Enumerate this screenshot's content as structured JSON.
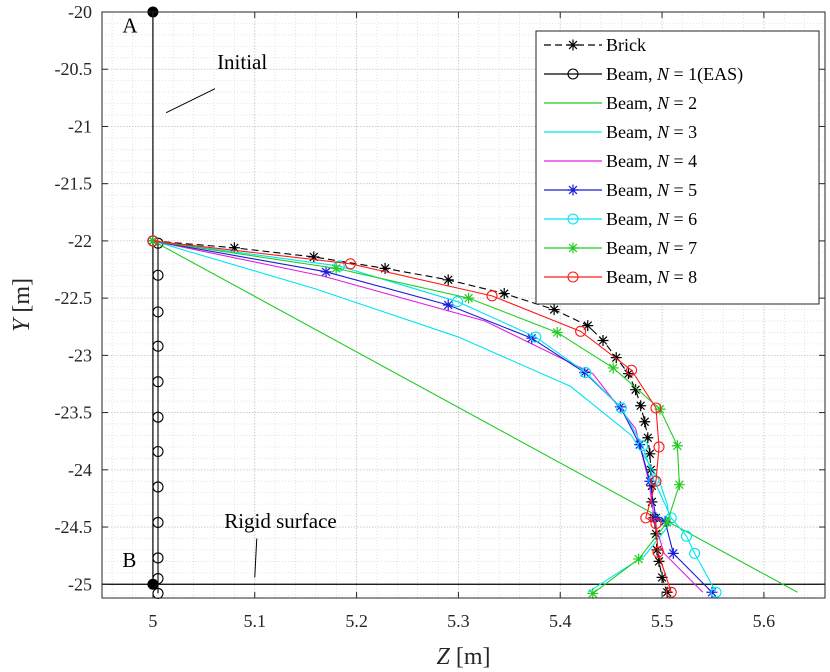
{
  "chart_data": {
    "type": "line",
    "title": "",
    "xlabel": "Z [m]",
    "ylabel": "Y [m]",
    "xlabel_var": "Z",
    "xlabel_unit": "[m]",
    "ylabel_var": "Y",
    "ylabel_unit": "[m]",
    "xlim": [
      4.95,
      5.66
    ],
    "ylim": [
      -25.12,
      -20.0
    ],
    "xticks": [
      5,
      5.1,
      5.2,
      5.3,
      5.4,
      5.5,
      5.6
    ],
    "xtick_labels": [
      "5",
      "5.1",
      "5.2",
      "5.3",
      "5.4",
      "5.5",
      "5.6"
    ],
    "yticks": [
      -20,
      -20.5,
      -21,
      -21.5,
      -22,
      -22.5,
      -23,
      -23.5,
      -24,
      -24.5,
      -25
    ],
    "ytick_labels": [
      "-20",
      "-20.5",
      "-21",
      "-21.5",
      "-22",
      "-22.5",
      "-23",
      "-23.5",
      "-24",
      "-24.5",
      "-25"
    ],
    "grid": true,
    "minor_grid": true,
    "legend_position": "top-right",
    "annotations": [
      {
        "text": "A",
        "x": 4.97,
        "y": -20.18
      },
      {
        "text": "B",
        "x": 4.97,
        "y": -24.85
      },
      {
        "text": "Initial",
        "x": 5.063,
        "y": -20.5,
        "pointer_from": [
          5.061,
          -20.67
        ],
        "pointer_to": [
          5.013,
          -20.88
        ]
      },
      {
        "text": "Rigid surface",
        "x": 5.07,
        "y": -24.51,
        "pointer_from": [
          5.102,
          -24.6
        ],
        "pointer_to": [
          5.1,
          -24.94
        ]
      }
    ],
    "points_AB": [
      {
        "label": "A",
        "x": 5.0,
        "y": -20.0
      },
      {
        "label": "B",
        "x": 5.0,
        "y": -25.0
      }
    ],
    "initial_line": {
      "x": [
        5.0,
        5.0
      ],
      "y": [
        -20.0,
        -25.0
      ]
    },
    "rigid_surface": {
      "y": -25.0
    },
    "series": [
      {
        "name": "Brick",
        "legend_label": "Brick",
        "color": "#000000",
        "dash": "7,4",
        "marker": "asterisk",
        "x": [
          5.0,
          5.08,
          5.158,
          5.228,
          5.29,
          5.345,
          5.394,
          5.427,
          5.442,
          5.455,
          5.467,
          5.474,
          5.479,
          5.483,
          5.486,
          5.488,
          5.489,
          5.49,
          5.49,
          5.492,
          5.494,
          5.495,
          5.497,
          5.5,
          5.505
        ],
        "y": [
          -22.0,
          -22.06,
          -22.14,
          -22.24,
          -22.34,
          -22.46,
          -22.6,
          -22.74,
          -22.87,
          -23.02,
          -23.16,
          -23.3,
          -23.44,
          -23.58,
          -23.72,
          -23.86,
          -24.0,
          -24.14,
          -24.28,
          -24.42,
          -24.56,
          -24.7,
          -24.8,
          -24.94,
          -25.07
        ]
      },
      {
        "name": "Beam, N = 1(EAS)",
        "legend_prefix": "Beam, ",
        "legend_var": "N",
        "legend_suffix": " = 1(EAS)",
        "color": "#000000",
        "marker": "circle",
        "x": [
          5.0,
          5.005,
          5.005,
          5.005,
          5.005,
          5.005,
          5.005,
          5.005,
          5.005,
          5.005,
          5.005,
          5.005,
          5.005
        ],
        "y": [
          -22.0,
          -22.02,
          -22.3,
          -22.62,
          -22.92,
          -23.23,
          -23.54,
          -23.84,
          -24.15,
          -24.46,
          -24.77,
          -24.95,
          -25.08
        ]
      },
      {
        "name": "Beam, N = 2",
        "legend_prefix": "Beam, ",
        "legend_var": "N",
        "legend_suffix": " = 2",
        "color": "#22cc22",
        "marker": "none",
        "x": [
          5.0,
          5.633
        ],
        "y": [
          -22.0,
          -25.07
        ]
      },
      {
        "name": "Beam, N = 3",
        "legend_prefix": "Beam, ",
        "legend_var": "N",
        "legend_suffix": " = 3",
        "color": "#00e5f0",
        "marker": "none",
        "x": [
          5.0,
          5.16,
          5.3,
          5.41,
          5.47,
          5.497,
          5.505,
          5.508,
          5.483,
          5.427
        ],
        "y": [
          -22.0,
          -22.42,
          -22.84,
          -23.27,
          -23.7,
          -24.09,
          -24.3,
          -24.47,
          -24.75,
          -25.07
        ]
      },
      {
        "name": "Beam, N = 4",
        "legend_prefix": "Beam, ",
        "legend_var": "N",
        "legend_suffix": " = 4",
        "color": "#e020e0",
        "marker": "none",
        "x": [
          5.0,
          5.168,
          5.326,
          5.432,
          5.474,
          5.487,
          5.493,
          5.502,
          5.54
        ],
        "y": [
          -22.0,
          -22.31,
          -22.7,
          -23.16,
          -23.64,
          -24.1,
          -24.47,
          -24.73,
          -25.07
        ]
      },
      {
        "name": "Beam, N = 5",
        "legend_prefix": "Beam, ",
        "legend_var": "N",
        "legend_suffix": " = 5",
        "color": "#1a1adb",
        "marker": "asterisk",
        "x": [
          5.0,
          5.17,
          5.29,
          5.372,
          5.424,
          5.459,
          5.478,
          5.488,
          5.494,
          5.503,
          5.511,
          5.549
        ],
        "y": [
          -22.0,
          -22.27,
          -22.56,
          -22.85,
          -23.15,
          -23.45,
          -23.78,
          -24.1,
          -24.42,
          -24.45,
          -24.73,
          -25.07
        ]
      },
      {
        "name": "Beam, N = 6",
        "legend_prefix": "Beam, ",
        "legend_var": "N",
        "legend_suffix": " = 6",
        "color": "#00e5f0",
        "marker": "circle",
        "x": [
          5.0,
          5.183,
          5.299,
          5.376,
          5.425,
          5.46,
          5.481,
          5.492,
          5.509,
          5.524,
          5.532,
          5.553
        ],
        "y": [
          -22.0,
          -22.22,
          -22.53,
          -22.84,
          -23.15,
          -23.46,
          -23.79,
          -24.09,
          -24.42,
          -24.58,
          -24.73,
          -25.07
        ]
      },
      {
        "name": "Beam, N = 7",
        "legend_prefix": "Beam, ",
        "legend_var": "N",
        "legend_suffix": " = 7",
        "color": "#22cc22",
        "marker": "asterisk",
        "x": [
          5.0,
          5.18,
          5.31,
          5.397,
          5.452,
          5.498,
          5.515,
          5.517,
          5.505,
          5.477,
          5.432
        ],
        "y": [
          -22.0,
          -22.24,
          -22.5,
          -22.8,
          -23.11,
          -23.47,
          -23.79,
          -24.13,
          -24.46,
          -24.78,
          -25.08
        ]
      },
      {
        "name": "Beam, N = 8",
        "legend_prefix": "Beam, ",
        "legend_var": "N",
        "legend_suffix": " = 8",
        "color": "#ff1a1a",
        "marker": "circle",
        "x": [
          5.0,
          5.194,
          5.333,
          5.42,
          5.47,
          5.494,
          5.497,
          5.494,
          5.484,
          5.494,
          5.496,
          5.509
        ],
        "y": [
          -22.0,
          -22.2,
          -22.48,
          -22.79,
          -23.13,
          -23.46,
          -23.8,
          -24.1,
          -24.42,
          -24.47,
          -24.72,
          -25.07
        ]
      }
    ]
  }
}
